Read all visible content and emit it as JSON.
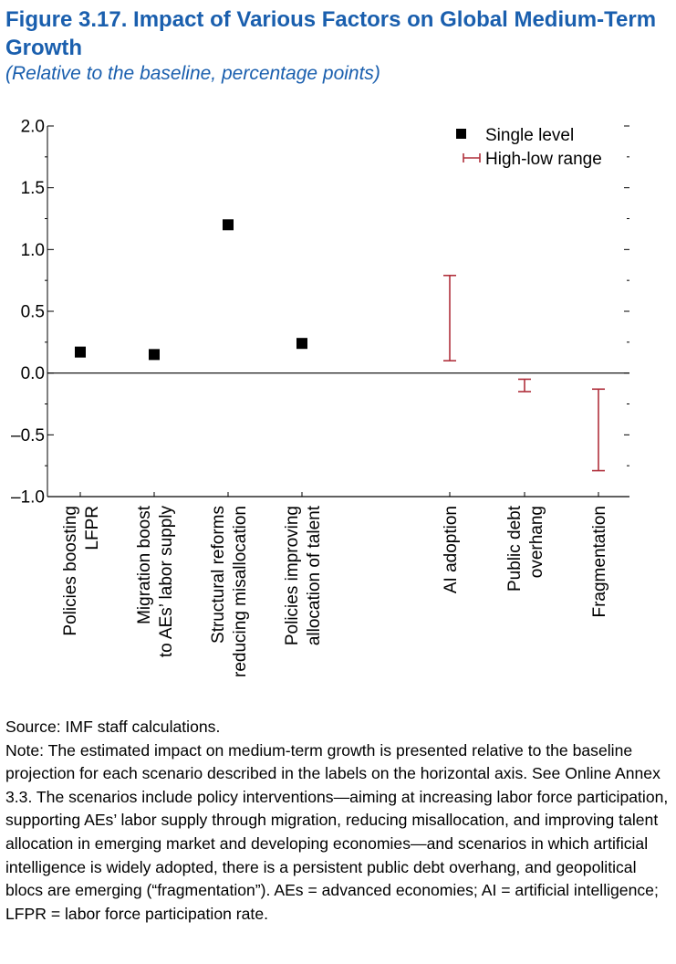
{
  "figure": {
    "title": "Figure 3.17.  Impact of Various Factors on Global Medium-Term Growth",
    "subtitle": "(Relative to the baseline, percentage points)"
  },
  "chart_data": {
    "type": "scatter",
    "ylim": [
      -1.0,
      2.0
    ],
    "y_ticks": [
      {
        "value": 2.0,
        "label": "2.0"
      },
      {
        "value": 1.5,
        "label": "1.5"
      },
      {
        "value": 1.0,
        "label": "1.0"
      },
      {
        "value": 0.5,
        "label": "0.5"
      },
      {
        "value": 0.0,
        "label": "0.0"
      },
      {
        "value": -0.5,
        "label": "–0.5"
      },
      {
        "value": -1.0,
        "label": "–1.0"
      }
    ],
    "legend": {
      "placement": "top-right",
      "items": [
        {
          "label": "Single level",
          "marker": "square",
          "color": "#000000"
        },
        {
          "label": "High-low range",
          "marker": "range",
          "color": "#b0303c"
        }
      ]
    },
    "categories": [
      {
        "lines": [
          "Policies boosting",
          "LFPR"
        ],
        "value": 0.17
      },
      {
        "lines": [
          "Migration boost",
          "to AEs’ labor supply"
        ],
        "value": 0.15
      },
      {
        "lines": [
          "Structural reforms",
          "reducing misallocation"
        ],
        "value": 1.2
      },
      {
        "lines": [
          "Policies improving",
          "allocation of talent"
        ],
        "value": 0.24
      },
      {
        "lines": [
          "AI adoption"
        ],
        "low": 0.1,
        "high": 0.79
      },
      {
        "lines": [
          "Public debt",
          "overhang"
        ],
        "low": -0.15,
        "high": -0.05
      },
      {
        "lines": [
          "Fragmentation"
        ],
        "low": -0.79,
        "high": -0.13
      }
    ],
    "colors": {
      "point": "#000000",
      "range": "#b0303c",
      "axis": "#000000"
    }
  },
  "notes": {
    "source": "Source: IMF staff calculations.",
    "note": "Note: The estimated impact on medium-term growth is presented relative to the baseline projection for each scenario described in the labels on the horizontal axis. See Online Annex 3.3. The scenarios include policy interventions—aiming at increasing labor force participation, supporting AEs’ labor supply through migration, reducing misallocation, and improving talent allocation in emerging market and developing economies—and scenarios in which artificial intelligence is widely adopted, there is a persistent public debt overhang, and geopolitical blocs are emerging (“fragmentation”). AEs = advanced economies; AI = artificial intelligence; LFPR = labor force participation rate."
  }
}
